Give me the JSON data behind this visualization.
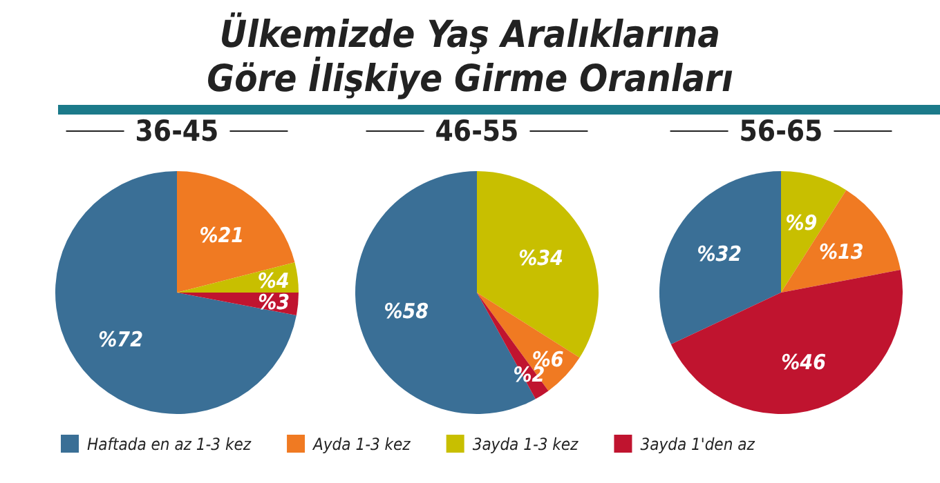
{
  "chart_data": [
    {
      "type": "pie",
      "title": "36-45",
      "annotations": [
        "Ülkemizde Yaş Aralıklarına",
        "Göre İlişkiye Girme Oranları"
      ],
      "legend": "bottom",
      "categories": [
        "Haftada en az 1-3 kez",
        "Ayda 1-3 kez",
        "3ayda 1-3 kez",
        "3ayda 1'den az"
      ],
      "values": [
        72,
        21,
        4,
        3
      ],
      "colors": [
        "#3a6f96",
        "#f07a22",
        "#c8bf00",
        "#c0142f"
      ],
      "value_labels": [
        "%72",
        "%21",
        "%4",
        "%3"
      ]
    },
    {
      "type": "pie",
      "title": "46-55",
      "categories": [
        null,
        null,
        null,
        null
      ],
      "values": [
        58,
        34,
        6,
        2
      ],
      "colors": [
        "#3a6f96",
        "#c8bf00",
        "#f07a22",
        "#c0142f"
      ],
      "value_labels": [
        "%58",
        "%34",
        "%6",
        "%2"
      ]
    },
    {
      "type": "pie",
      "title": "56-65",
      "categories": [
        null,
        null,
        null,
        null
      ],
      "values": [
        32,
        9,
        13,
        46
      ],
      "colors": [
        "#3a6f96",
        "#c8bf00",
        "#f07a22",
        "#c0142f"
      ],
      "value_labels": [
        "%32",
        "%9",
        "%13",
        "%46"
      ]
    }
  ]
}
